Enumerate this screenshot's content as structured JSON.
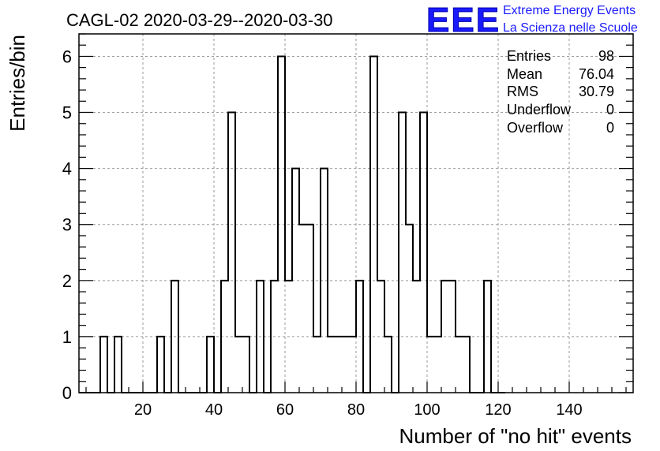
{
  "header": {
    "title": "CAGL-02 2020-03-29--2020-03-30",
    "logo_text": "EEE",
    "logo_line1": "Extreme Energy Events",
    "logo_line2": "La Scienza nelle Scuole",
    "logo_color": "#1a1aff"
  },
  "stats": {
    "entries_label": "Entries",
    "entries_value": "98",
    "mean_label": "Mean",
    "mean_value": "76.04",
    "rms_label": "RMS",
    "rms_value": "30.79",
    "underflow_label": "Underflow",
    "underflow_value": "0",
    "overflow_label": "Overflow",
    "overflow_value": "0"
  },
  "chart_data": {
    "type": "histogram",
    "xlabel": "Number of \"no hit\" events",
    "ylabel": "Entries/bin",
    "xlim": [
      2,
      158
    ],
    "ylim": [
      0,
      6.4
    ],
    "bin_width": 2,
    "x_ticks": [
      20,
      40,
      60,
      80,
      100,
      120,
      140
    ],
    "y_ticks": [
      0,
      1,
      2,
      3,
      4,
      5,
      6
    ],
    "grid": true,
    "line_color": "#000000",
    "bins": [
      {
        "x": 2,
        "value": 0
      },
      {
        "x": 4,
        "value": 0
      },
      {
        "x": 6,
        "value": 0
      },
      {
        "x": 8,
        "value": 1
      },
      {
        "x": 10,
        "value": 0
      },
      {
        "x": 12,
        "value": 1
      },
      {
        "x": 14,
        "value": 0
      },
      {
        "x": 16,
        "value": 0
      },
      {
        "x": 18,
        "value": 0
      },
      {
        "x": 20,
        "value": 0
      },
      {
        "x": 22,
        "value": 0
      },
      {
        "x": 24,
        "value": 1
      },
      {
        "x": 26,
        "value": 0
      },
      {
        "x": 28,
        "value": 2
      },
      {
        "x": 30,
        "value": 0
      },
      {
        "x": 32,
        "value": 0
      },
      {
        "x": 34,
        "value": 0
      },
      {
        "x": 36,
        "value": 0
      },
      {
        "x": 38,
        "value": 1
      },
      {
        "x": 40,
        "value": 0
      },
      {
        "x": 42,
        "value": 2
      },
      {
        "x": 44,
        "value": 5
      },
      {
        "x": 46,
        "value": 1
      },
      {
        "x": 48,
        "value": 1
      },
      {
        "x": 50,
        "value": 0
      },
      {
        "x": 52,
        "value": 2
      },
      {
        "x": 54,
        "value": 0
      },
      {
        "x": 56,
        "value": 2
      },
      {
        "x": 58,
        "value": 6
      },
      {
        "x": 60,
        "value": 2
      },
      {
        "x": 62,
        "value": 4
      },
      {
        "x": 64,
        "value": 3
      },
      {
        "x": 66,
        "value": 3
      },
      {
        "x": 68,
        "value": 1
      },
      {
        "x": 70,
        "value": 4
      },
      {
        "x": 72,
        "value": 1
      },
      {
        "x": 74,
        "value": 1
      },
      {
        "x": 76,
        "value": 1
      },
      {
        "x": 78,
        "value": 1
      },
      {
        "x": 80,
        "value": 2
      },
      {
        "x": 82,
        "value": 0
      },
      {
        "x": 84,
        "value": 6
      },
      {
        "x": 86,
        "value": 2
      },
      {
        "x": 88,
        "value": 1
      },
      {
        "x": 90,
        "value": 0
      },
      {
        "x": 92,
        "value": 5
      },
      {
        "x": 94,
        "value": 3
      },
      {
        "x": 96,
        "value": 2
      },
      {
        "x": 98,
        "value": 5
      },
      {
        "x": 100,
        "value": 1
      },
      {
        "x": 102,
        "value": 1
      },
      {
        "x": 104,
        "value": 2
      },
      {
        "x": 106,
        "value": 2
      },
      {
        "x": 108,
        "value": 1
      },
      {
        "x": 110,
        "value": 1
      },
      {
        "x": 112,
        "value": 0
      },
      {
        "x": 114,
        "value": 0
      },
      {
        "x": 116,
        "value": 2
      },
      {
        "x": 118,
        "value": 0
      },
      {
        "x": 120,
        "value": 0
      }
    ]
  }
}
